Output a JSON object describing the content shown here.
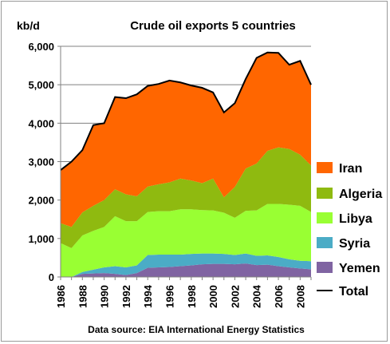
{
  "chart_data": {
    "type": "area",
    "stacked": true,
    "title": "Crude oil exports 5 countries",
    "ylabel": "kb/d",
    "source": "Data source: EIA International Energy Statistics",
    "ylim": [
      0,
      6000
    ],
    "yticks": [
      0,
      1000,
      2000,
      3000,
      4000,
      5000,
      6000
    ],
    "y_tick_labels": [
      "0",
      "1,000",
      "2,000",
      "3,000",
      "4,000",
      "5,000",
      "6,000"
    ],
    "x": [
      1986,
      1987,
      1988,
      1989,
      1990,
      1991,
      1992,
      1993,
      1994,
      1995,
      1996,
      1997,
      1998,
      1999,
      2000,
      2001,
      2002,
      2003,
      2004,
      2005,
      2006,
      2007,
      2008,
      2009
    ],
    "x_tick_labels": [
      "1986",
      "1988",
      "1990",
      "1992",
      "1994",
      "1996",
      "1998",
      "2000",
      "2002",
      "2004",
      "2006",
      "2008"
    ],
    "grid": true,
    "legend_position": "right",
    "series": [
      {
        "name": "Yemen",
        "color": "#8064A2",
        "values": [
          0,
          0,
          80,
          90,
          100,
          80,
          50,
          100,
          240,
          250,
          260,
          280,
          300,
          330,
          340,
          340,
          330,
          350,
          310,
          320,
          280,
          250,
          220,
          200
        ]
      },
      {
        "name": "Syria",
        "color": "#4BACC6",
        "values": [
          0,
          0,
          50,
          100,
          150,
          200,
          200,
          200,
          330,
          330,
          320,
          300,
          300,
          280,
          270,
          260,
          240,
          260,
          240,
          240,
          240,
          210,
          200,
          210
        ]
      },
      {
        "name": "Libya",
        "color": "#99FF33",
        "values": [
          880,
          750,
          950,
          1010,
          1050,
          1300,
          1200,
          1150,
          1120,
          1130,
          1130,
          1180,
          1160,
          1130,
          1120,
          1070,
          970,
          1110,
          1180,
          1340,
          1380,
          1420,
          1430,
          1280
        ]
      },
      {
        "name": "Algeria",
        "color": "#8FBA10",
        "values": [
          520,
          550,
          600,
          650,
          700,
          700,
          700,
          650,
          660,
          700,
          750,
          800,
          750,
          700,
          830,
          400,
          800,
          1100,
          1220,
          1380,
          1470,
          1450,
          1330,
          1210
        ]
      },
      {
        "name": "Iran",
        "color": "#FF6600",
        "values": [
          1380,
          1700,
          1620,
          2100,
          2000,
          2400,
          2500,
          2650,
          2620,
          2610,
          2650,
          2500,
          2470,
          2480,
          2240,
          2210,
          2180,
          2330,
          2750,
          2560,
          2460,
          2190,
          2440,
          2100
        ]
      }
    ],
    "total": {
      "name": "Total",
      "color": "#000000",
      "values": [
        2780,
        3000,
        3300,
        3950,
        4000,
        4680,
        4650,
        4750,
        4970,
        5020,
        5110,
        5060,
        4980,
        4920,
        4800,
        4280,
        4520,
        5150,
        5700,
        5840,
        5830,
        5520,
        5620,
        5000
      ]
    }
  }
}
